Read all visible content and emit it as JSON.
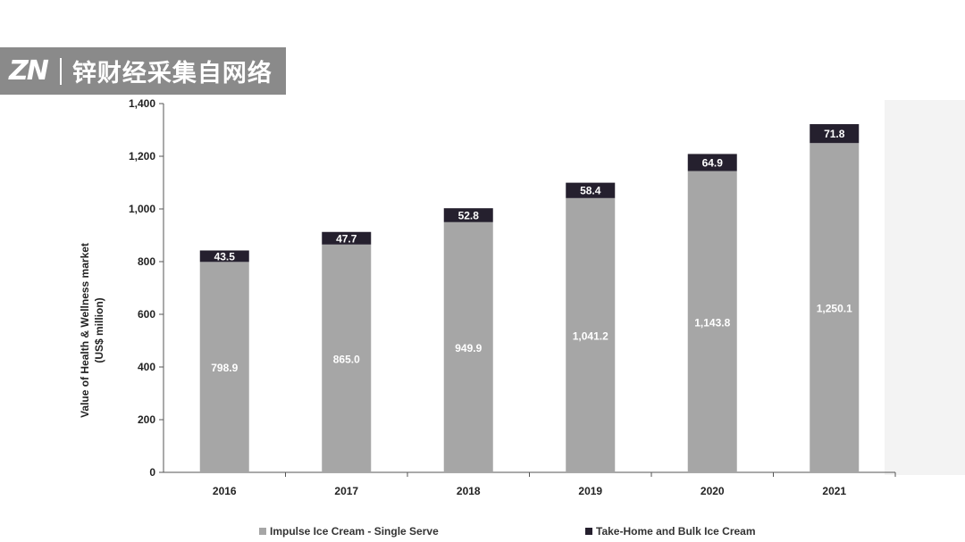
{
  "watermark": {
    "logo": "ZN",
    "text": "锌财经采集自网络"
  },
  "colors": {
    "impulse": "#a6a6a6",
    "take_home": "#25202e",
    "axis": "#555555",
    "panel": "#f3f3f3"
  },
  "chart_data": {
    "type": "bar",
    "stacked": true,
    "categories": [
      "2016",
      "2017",
      "2018",
      "2019",
      "2020",
      "2021"
    ],
    "series": [
      {
        "name": "Impulse Ice Cream - Single Serve",
        "values": [
          798.9,
          865.0,
          949.9,
          1041.2,
          1143.8,
          1250.1
        ],
        "labels": [
          "798.9",
          "865.0",
          "949.9",
          "1,041.2",
          "1,143.8",
          "1,250.1"
        ]
      },
      {
        "name": "Take-Home and Bulk Ice Cream",
        "values": [
          43.5,
          47.7,
          52.8,
          58.4,
          64.9,
          71.8
        ],
        "labels": [
          "43.5",
          "47.7",
          "52.8",
          "58.4",
          "64.9",
          "71.8"
        ]
      }
    ],
    "yticks": [
      "0",
      "200",
      "400",
      "600",
      "800",
      "1,000",
      "1,200",
      "1,400"
    ],
    "ylim": [
      0,
      1400
    ],
    "ylabel_line1": "Value of Health & Wellness market",
    "ylabel_line2": "(US$ million)",
    "xlabel": "",
    "grid": false,
    "legend": "bottom"
  }
}
